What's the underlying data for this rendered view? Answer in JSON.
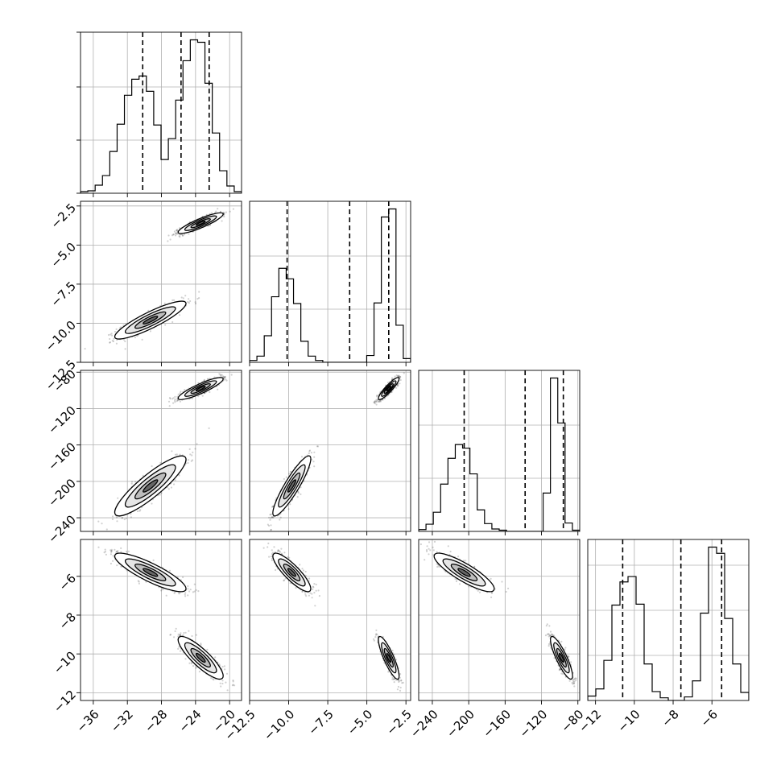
{
  "chart_data": {
    "type": "corner",
    "variables": [
      {
        "ticks": [
          -36,
          -32,
          -28,
          -24,
          -20
        ],
        "tick_labels": [
          "−36",
          "−32",
          "−28",
          "−24",
          "−20"
        ],
        "range": [
          -37.5,
          -18.6
        ],
        "quantiles": [
          -30.2,
          -25.7,
          -22.4
        ]
      },
      {
        "ticks": [
          -12.5,
          -10.0,
          -7.5,
          -5.0,
          -2.5
        ],
        "tick_labels": [
          "−12.5",
          "−10.0",
          "−7.5",
          "−5.0",
          "−2.5"
        ],
        "range": [
          -12.5,
          -2.2
        ],
        "quantiles": [
          -10.1,
          -6.1,
          -3.6
        ]
      },
      {
        "ticks": [
          -240,
          -200,
          -160,
          -120,
          -80
        ],
        "tick_labels": [
          "−240",
          "−200",
          "−160",
          "−120",
          "−80"
        ],
        "range": [
          -255,
          -78
        ],
        "quantiles": [
          -205,
          -138,
          -96
        ]
      },
      {
        "ticks": [
          -12,
          -10,
          -8,
          -6
        ],
        "tick_labels": [
          "−12",
          "−10",
          "−8",
          "−6"
        ],
        "range": [
          -12.4,
          -4.1
        ],
        "quantiles": [
          -10.6,
          -7.6,
          -5.5
        ]
      }
    ],
    "modes": [
      {
        "weight": 0.45,
        "mean": [
          -29.3,
          -9.8,
          -205,
          -5.8
        ],
        "sd": [
          1.9,
          0.55,
          15,
          0.45
        ]
      },
      {
        "weight": 0.55,
        "mean": [
          -23.4,
          -3.6,
          -98,
          -10.2
        ],
        "sd": [
          1.2,
          0.3,
          5.5,
          0.5
        ]
      }
    ],
    "histograms": [
      {
        "edges_x_per_bin": 20,
        "counts": [
          0.2,
          0.3,
          1.0,
          2.2,
          5.2,
          8.6,
          12.2,
          14.2,
          14.6,
          12.7,
          8.5,
          4.2,
          6.8,
          11.6,
          16.5,
          19.1,
          18.8,
          13.7,
          7.5,
          2.8,
          0.9,
          0.2
        ]
      },
      {
        "counts": [
          0.3,
          1.0,
          4.3,
          10.6,
          15.2,
          13.5,
          9.5,
          3.4,
          1.0,
          0.3,
          0,
          0,
          0,
          0,
          0,
          0,
          1.1,
          9.6,
          23.5,
          24.8,
          6.0,
          0.6
        ]
      },
      {
        "counts": [
          0.3,
          1.2,
          3.2,
          7.9,
          12.2,
          14.5,
          13.9,
          9.6,
          3.6,
          1.3,
          0.4,
          0.2,
          0,
          0,
          0,
          0,
          0,
          6.4,
          25.6,
          18.1,
          1.4,
          0.2
        ]
      },
      {
        "counts": [
          0.5,
          1.3,
          4.5,
          10.7,
          13.3,
          13.9,
          10.8,
          4.1,
          1.0,
          0.3,
          0,
          0,
          0.4,
          2.2,
          9.8,
          17.2,
          16.5,
          9.2,
          4.1,
          0.9
        ]
      }
    ],
    "grid": true
  }
}
